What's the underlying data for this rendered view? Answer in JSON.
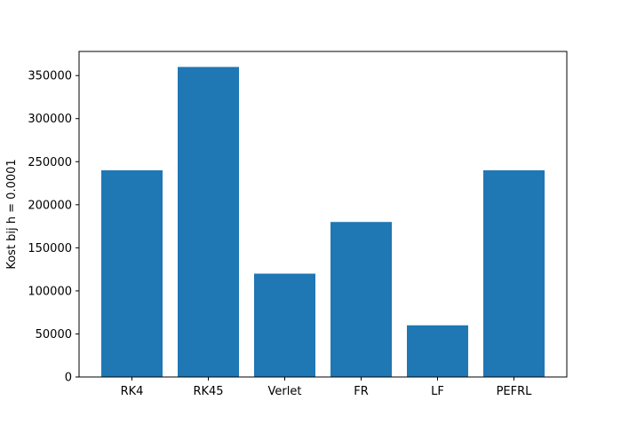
{
  "chart_data": {
    "type": "bar",
    "title": "",
    "xlabel": "",
    "ylabel": "Kost bij h = 0.0001",
    "categories": [
      "RK4",
      "RK45",
      "Verlet",
      "FR",
      "LF",
      "PEFRL"
    ],
    "values": [
      240000,
      360000,
      120000,
      180000,
      60000,
      240000
    ],
    "ylim": [
      0,
      378000
    ],
    "yticks": [
      0,
      50000,
      100000,
      150000,
      200000,
      250000,
      300000,
      350000
    ],
    "ytick_labels": [
      "0",
      "50000",
      "100000",
      "150000",
      "200000",
      "250000",
      "300000",
      "350000"
    ],
    "bar_color": "#1f77b4",
    "grid": false,
    "legend": "none"
  }
}
